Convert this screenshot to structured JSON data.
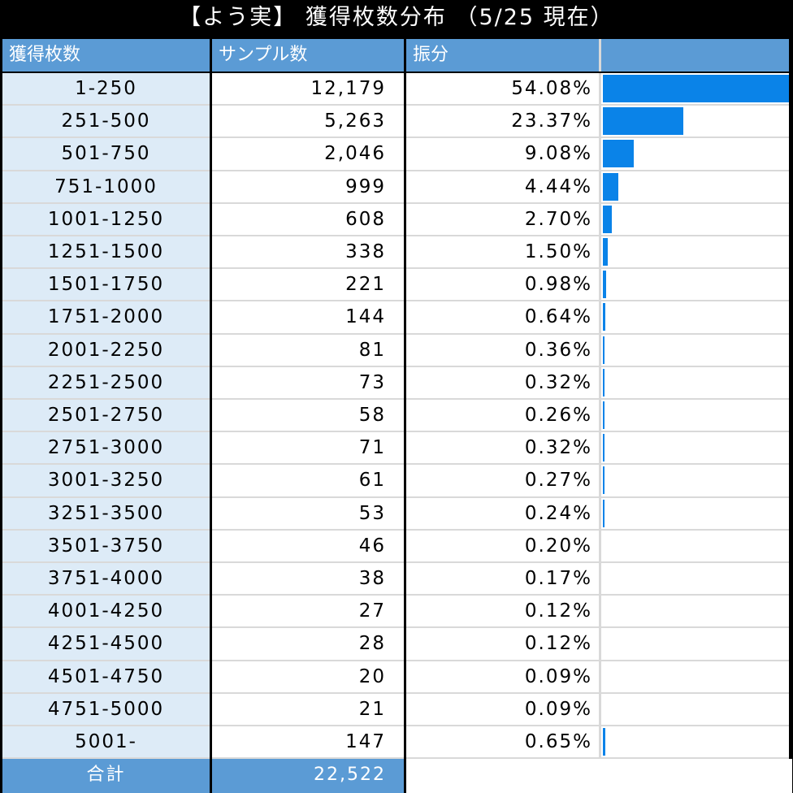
{
  "title": "【よう実】 獲得枚数分布 （5/25 現在）",
  "headers": {
    "range": "獲得枚数",
    "samples": "サンプル数",
    "share": "振分",
    "bar": ""
  },
  "colors": {
    "header": "#5B9BD5",
    "range_col": "#DDEBF7",
    "bar": "#0A83E8"
  },
  "chart_data": {
    "type": "table",
    "title": "【よう実】 獲得枚数分布 （5/25 現在）",
    "columns": [
      "獲得枚数",
      "サンプル数",
      "振分"
    ],
    "categories": [
      "1-250",
      "251-500",
      "501-750",
      "751-1000",
      "1001-1250",
      "1251-1500",
      "1501-1750",
      "1751-2000",
      "2001-2250",
      "2251-2500",
      "2501-2750",
      "2751-3000",
      "3001-3250",
      "3251-3500",
      "3501-3750",
      "3751-4000",
      "4001-4250",
      "4251-4500",
      "4501-4750",
      "4751-5000",
      "5001-"
    ],
    "samples": [
      "12,179",
      "5,263",
      "2,046",
      "999",
      "608",
      "338",
      "221",
      "144",
      "81",
      "73",
      "58",
      "71",
      "61",
      "53",
      "46",
      "38",
      "27",
      "28",
      "20",
      "21",
      "147"
    ],
    "shares": [
      "54.08%",
      "23.37%",
      "9.08%",
      "4.44%",
      "2.70%",
      "1.50%",
      "0.98%",
      "0.64%",
      "0.36%",
      "0.32%",
      "0.26%",
      "0.32%",
      "0.27%",
      "0.24%",
      "0.20%",
      "0.17%",
      "0.12%",
      "0.12%",
      "0.09%",
      "0.09%",
      "0.65%"
    ],
    "share_values": [
      54.08,
      23.37,
      9.08,
      4.44,
      2.7,
      1.5,
      0.98,
      0.64,
      0.36,
      0.32,
      0.26,
      0.32,
      0.27,
      0.24,
      0.2,
      0.17,
      0.12,
      0.12,
      0.09,
      0.09,
      0.65
    ],
    "bar_max": 54.08
  },
  "total": {
    "label": "合計",
    "value": "22,522"
  }
}
